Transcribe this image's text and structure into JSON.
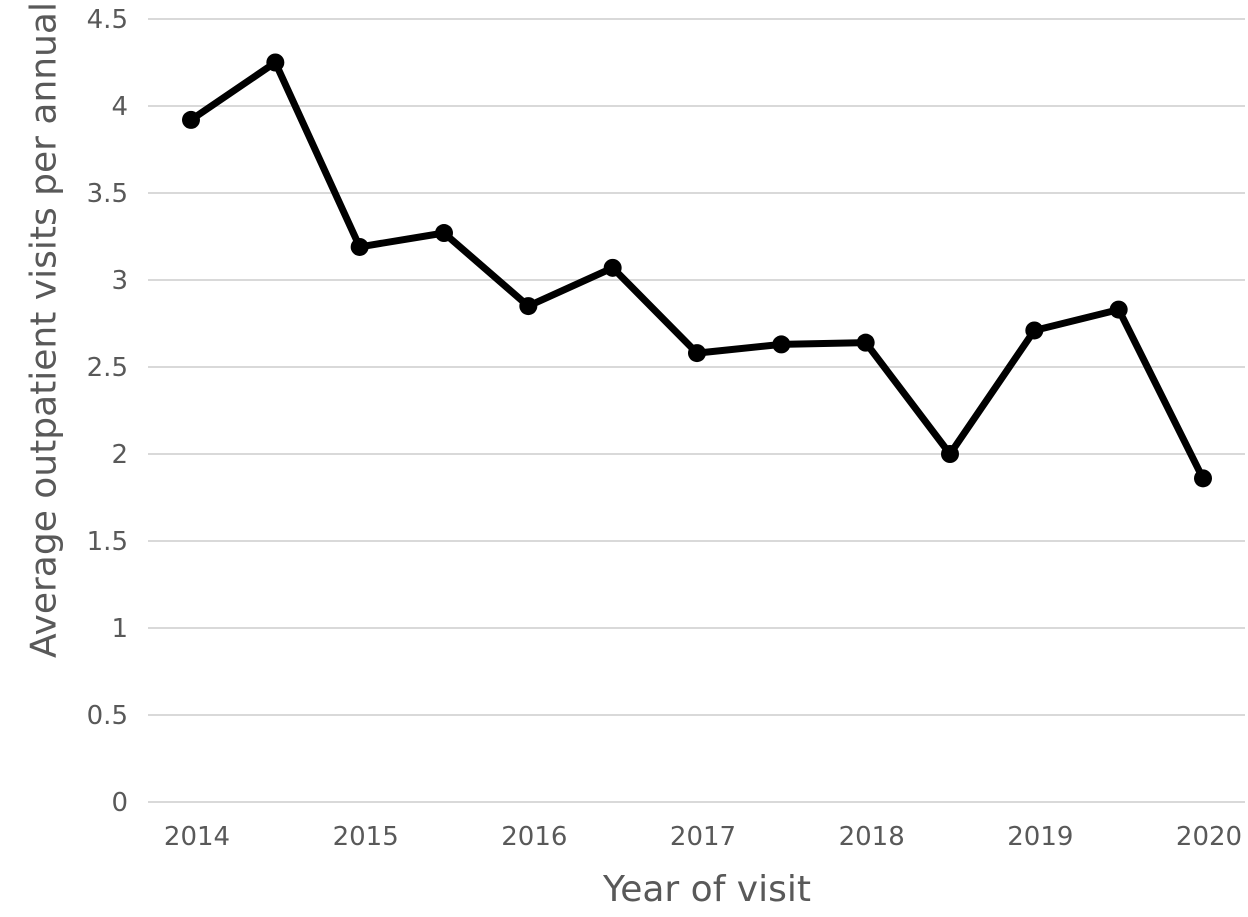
{
  "chart_data": {
    "type": "line",
    "title": "",
    "xlabel": "Year of visit",
    "ylabel": "Average outpatient visits per annual",
    "ylim": [
      0,
      4.5
    ],
    "y_ticks": [
      "0",
      "0.5",
      "1",
      "1.5",
      "2",
      "2.5",
      "3",
      "3.5",
      "4",
      "4.5"
    ],
    "x_tick_labels": [
      "2014",
      "2015",
      "2016",
      "2017",
      "2018",
      "2019",
      "2020"
    ],
    "x": [
      2014.0,
      2014.5,
      2015.0,
      2015.5,
      2016.0,
      2016.5,
      2017.0,
      2017.5,
      2018.0,
      2018.5,
      2019.0,
      2019.5,
      2020.0
    ],
    "series": [
      {
        "values": [
          3.92,
          4.25,
          3.19,
          3.27,
          2.85,
          3.07,
          2.58,
          2.63,
          2.64,
          2.0,
          2.71,
          2.83,
          1.86
        ],
        "color": "#000000"
      }
    ],
    "grid": true,
    "legend": "none"
  }
}
